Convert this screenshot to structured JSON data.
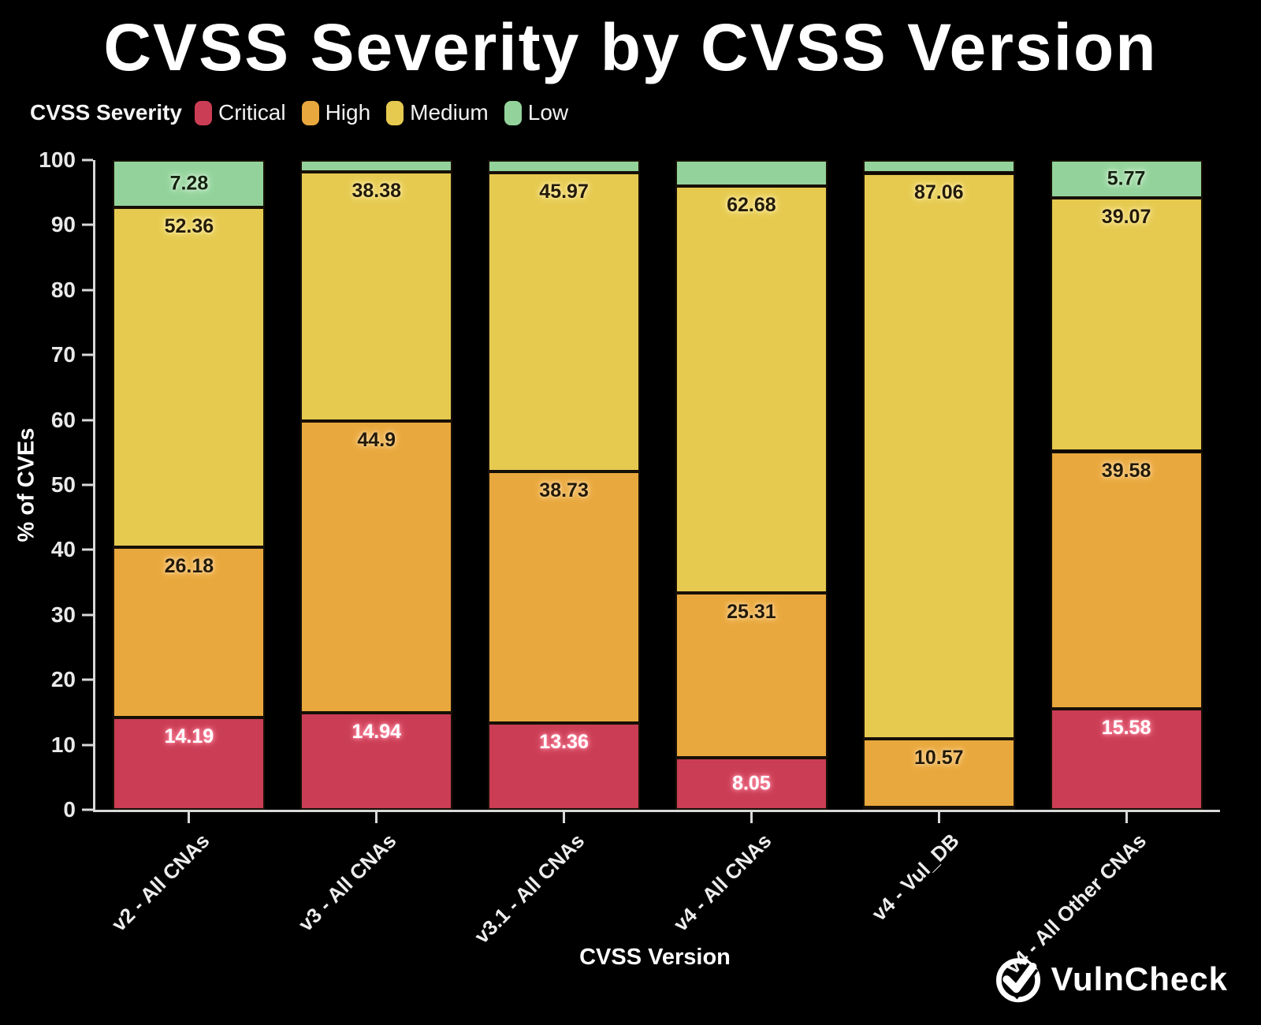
{
  "title": "CVSS Severity by CVSS Version",
  "legend": {
    "title": "CVSS Severity",
    "items": [
      {
        "label": "Critical",
        "color": "#cb3d54"
      },
      {
        "label": "High",
        "color": "#e9a83d"
      },
      {
        "label": "Medium",
        "color": "#e6ca50"
      },
      {
        "label": "Low",
        "color": "#93d39b"
      }
    ]
  },
  "chart_data": {
    "type": "bar",
    "stacked": true,
    "title": "CVSS Severity by CVSS Version",
    "xlabel": "CVSS Version",
    "ylabel": "% of CVEs",
    "ylim": [
      0,
      100
    ],
    "yticks": [
      0,
      10,
      20,
      30,
      40,
      50,
      60,
      70,
      80,
      90,
      100
    ],
    "grid": false,
    "background": "#000000",
    "legend_position": "top-left",
    "categories": [
      "v2 - All CNAs",
      "v3 - All CNAs",
      "v3.1 - All CNAs",
      "v4 - All CNAs",
      "v4 - Vul_DB",
      "v4 - All Other CNAs"
    ],
    "series": [
      {
        "name": "Critical",
        "color": "#cb3d54",
        "label_color": "#ffffff",
        "label_glow": "#ff8fa6",
        "values": [
          14.19,
          14.94,
          13.36,
          8.05,
          0.37,
          15.58
        ],
        "labels": [
          "14.19",
          "14.94",
          "13.36",
          "8.05",
          null,
          "15.58"
        ]
      },
      {
        "name": "High",
        "color": "#e9a83d",
        "label_color": "#231a08",
        "label_glow": "#ffd79a",
        "values": [
          26.18,
          44.9,
          38.73,
          25.31,
          10.57,
          39.58
        ],
        "labels": [
          "26.18",
          "44.9",
          "38.73",
          "25.31",
          "10.57",
          "39.58"
        ]
      },
      {
        "name": "Medium",
        "color": "#e6ca50",
        "label_color": "#231a08",
        "label_glow": "#fdeda6",
        "values": [
          52.36,
          38.38,
          45.97,
          62.68,
          87.06,
          39.07
        ],
        "labels": [
          "52.36",
          "38.38",
          "45.97",
          "62.68",
          "87.06",
          "39.07"
        ]
      },
      {
        "name": "Low",
        "color": "#93d39b",
        "label_color": "#14230f",
        "label_glow": "#d8f3da",
        "values": [
          7.28,
          1.78,
          1.94,
          3.96,
          2.0,
          5.77
        ],
        "labels": [
          "7.28",
          null,
          null,
          null,
          null,
          "5.77"
        ]
      }
    ]
  },
  "footer": {
    "logo_text": "VulnCheck"
  }
}
